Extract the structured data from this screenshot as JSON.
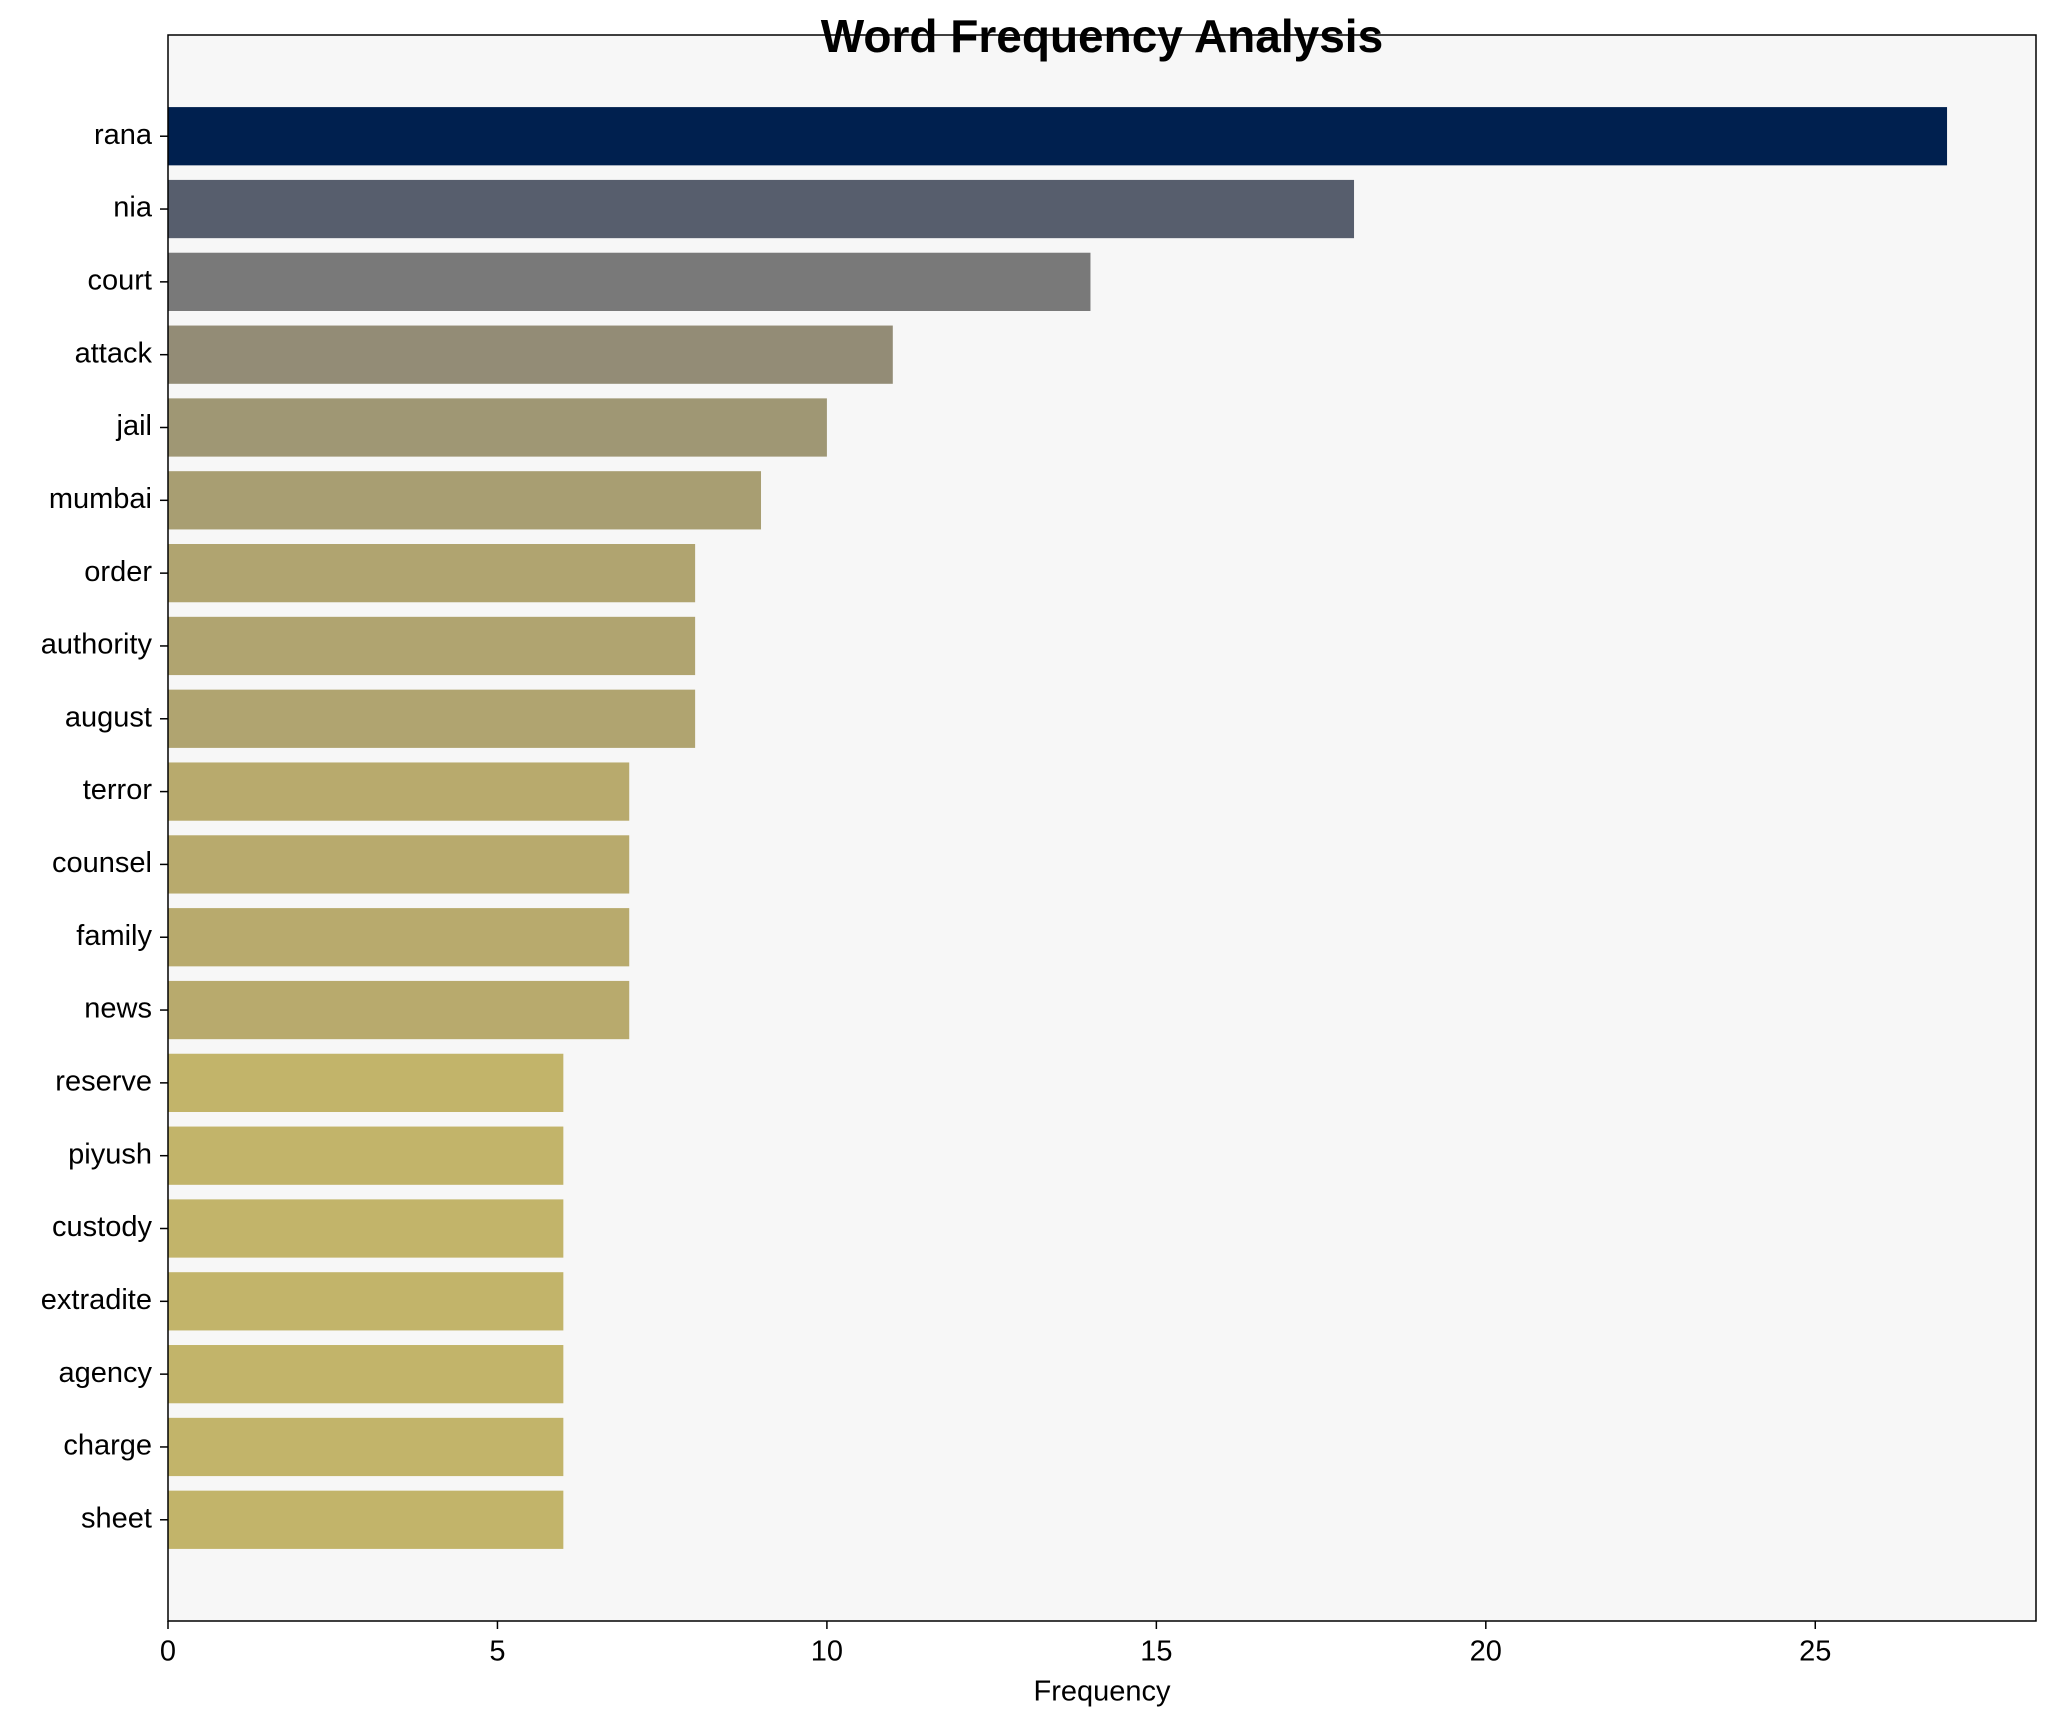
{
  "chart_data": {
    "type": "barh",
    "title": "Word Frequency Analysis",
    "x_label": "Frequency",
    "categories": [
      "rana",
      "nia",
      "court",
      "attack",
      "jail",
      "mumbai",
      "order",
      "authority",
      "august",
      "terror",
      "counsel",
      "family",
      "news",
      "reserve",
      "piyush",
      "custody",
      "extradite",
      "agency",
      "charge",
      "sheet"
    ],
    "values": [
      27,
      18,
      14,
      11,
      10,
      9,
      8,
      8,
      8,
      7,
      7,
      7,
      7,
      6,
      6,
      6,
      6,
      6,
      6,
      6
    ],
    "colors": [
      "#00204f",
      "#575e6d",
      "#797979",
      "#938c76",
      "#9f9774",
      "#a89e72",
      "#b0a470",
      "#b0a470",
      "#b0a470",
      "#b8aa6d",
      "#b8aa6d",
      "#b8aa6d",
      "#b8aa6d",
      "#c2b46a",
      "#c2b46a",
      "#c2b46a",
      "#c2b46a",
      "#c2b46a",
      "#c2b46a",
      "#c2b46a"
    ],
    "xlim": [
      0,
      28.35
    ],
    "xticks": [
      0,
      5,
      10,
      15,
      20,
      25
    ]
  }
}
